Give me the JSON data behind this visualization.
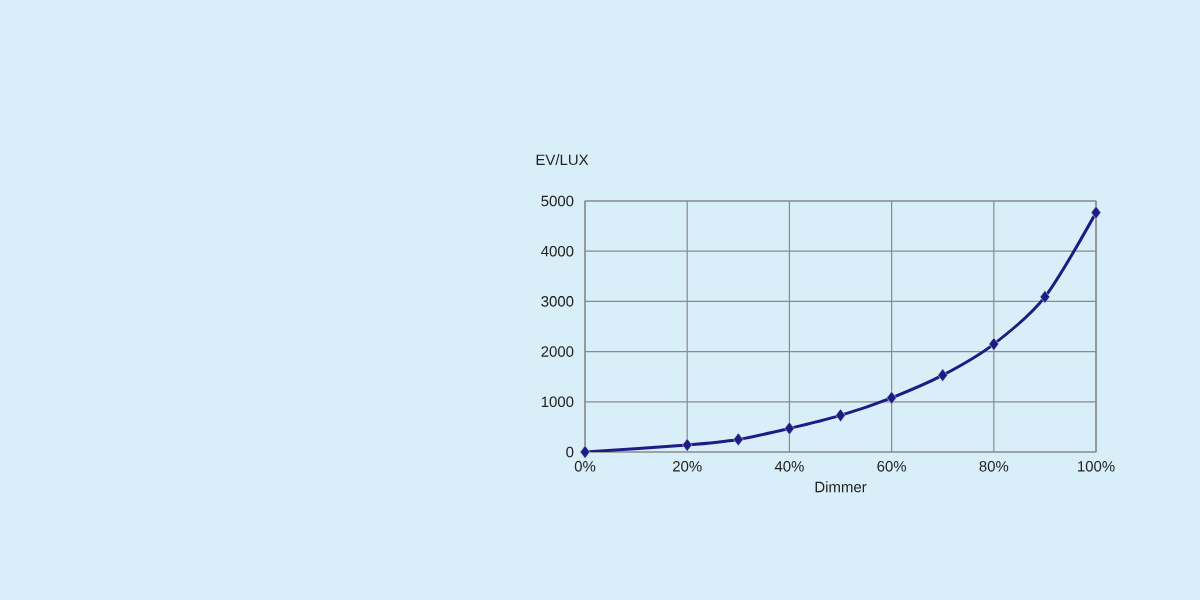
{
  "chart_data": {
    "type": "line",
    "xlabel": "Dimmer",
    "ylabel": "EV/LUX",
    "x": [
      0,
      20,
      30,
      40,
      50,
      60,
      70,
      80,
      90,
      100
    ],
    "series": [
      {
        "color": "#1c1c84",
        "values": [
          0,
          140,
          250,
          470,
          730,
          1080,
          1530,
          2150,
          3090,
          4770
        ]
      }
    ],
    "xlim": [
      0,
      100
    ],
    "ylim": [
      0,
      5000
    ],
    "xticks": [
      {
        "value": 0,
        "label": "0%"
      },
      {
        "value": 20,
        "label": "20%"
      },
      {
        "value": 40,
        "label": "40%"
      },
      {
        "value": 60,
        "label": "60%"
      },
      {
        "value": 80,
        "label": "80%"
      },
      {
        "value": 100,
        "label": "100%"
      }
    ],
    "yticks": [
      0,
      1000,
      2000,
      3000,
      4000,
      5000
    ],
    "grid": true,
    "marker": "diamond",
    "line_style": "solid"
  }
}
